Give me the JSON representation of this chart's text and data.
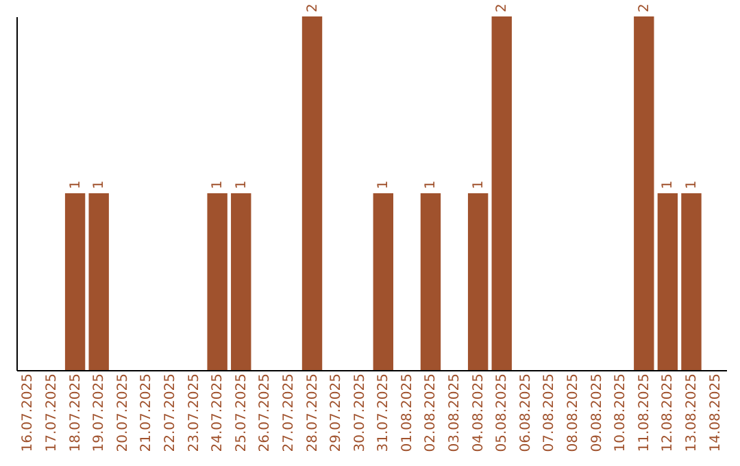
{
  "chart_data": {
    "type": "bar",
    "categories": [
      "16.07.2025",
      "17.07.2025",
      "18.07.2025",
      "19.07.2025",
      "20.07.2025",
      "21.07.2025",
      "22.07.2025",
      "23.07.2025",
      "24.07.2025",
      "25.07.2025",
      "26.07.2025",
      "27.07.2025",
      "28.07.2025",
      "29.07.2025",
      "30.07.2025",
      "31.07.2025",
      "01.08.2025",
      "02.08.2025",
      "03.08.2025",
      "04.08.2025",
      "05.08.2025",
      "06.08.2025",
      "07.08.2025",
      "08.08.2025",
      "09.08.2025",
      "10.08.2025",
      "11.08.2025",
      "12.08.2025",
      "13.08.2025",
      "14.08.2025"
    ],
    "values": [
      0,
      0,
      1,
      1,
      0,
      0,
      0,
      0,
      1,
      1,
      0,
      0,
      2,
      0,
      0,
      1,
      0,
      1,
      0,
      1,
      2,
      0,
      0,
      0,
      0,
      0,
      2,
      1,
      1,
      0
    ],
    "value_labels": [
      null,
      null,
      "1",
      "1",
      null,
      null,
      null,
      null,
      "1",
      "1",
      null,
      null,
      "2",
      null,
      null,
      "1",
      null,
      "1",
      null,
      "1",
      "2",
      null,
      null,
      null,
      null,
      null,
      "2",
      "1",
      "1",
      null
    ],
    "color": "#a0522d",
    "tick_labels": "x",
    "grid": false
  }
}
